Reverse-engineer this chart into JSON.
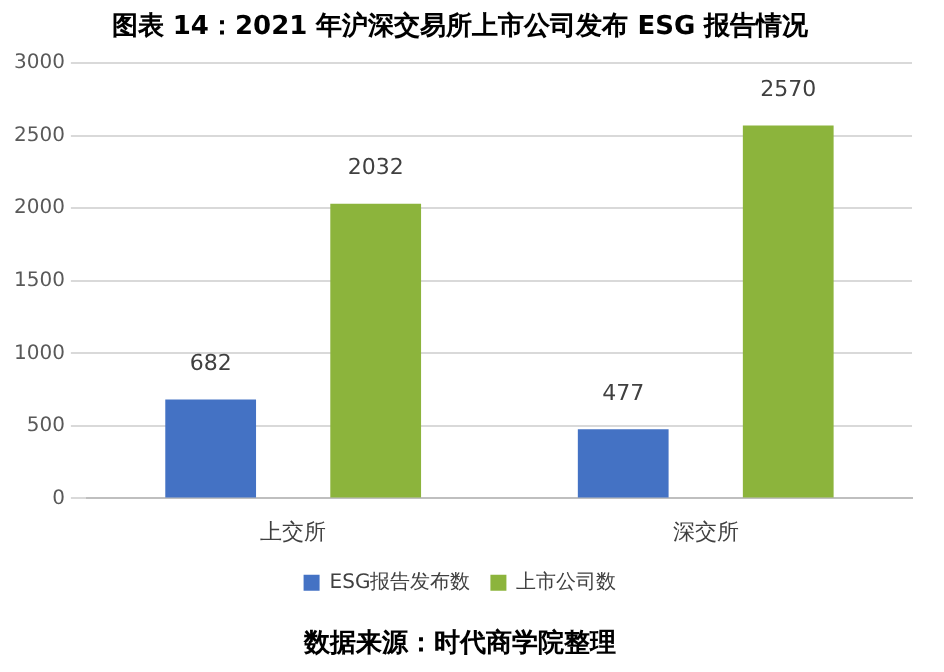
{
  "chart_data": {
    "type": "bar",
    "title": "图表 14：2021 年沪深交易所上市公司发布 ESG 报告情况",
    "categories": [
      "上交所",
      "深交所"
    ],
    "series": [
      {
        "name": "ESG报告发布数",
        "color": "#4472c4",
        "values": [
          682,
          477
        ]
      },
      {
        "name": "上市公司数",
        "color": "#8cb43c",
        "values": [
          2032,
          2570
        ]
      }
    ],
    "ylim": [
      0,
      3000
    ],
    "yticks": [
      0,
      500,
      1000,
      1500,
      2000,
      2500,
      3000
    ],
    "grid": "y",
    "legend": "bottom",
    "data_labels": true,
    "annotations": [
      "数据来源：时代商学院整理"
    ]
  }
}
